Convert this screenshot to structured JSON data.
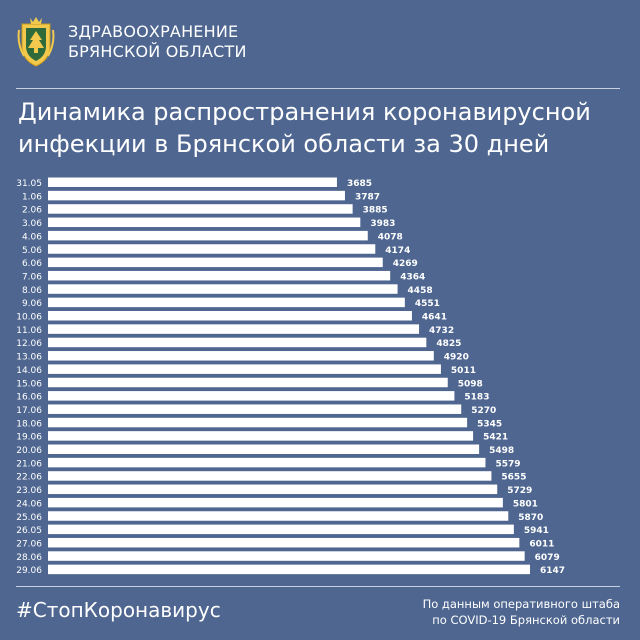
{
  "header": {
    "org_line1": "ЗДРАВООХРАНЕНИЕ",
    "org_line2": "БРЯНСКОЙ ОБЛАСТИ",
    "emblem_icon": "coat-of-arms-icon"
  },
  "title": {
    "line1": "Динамика распространения коронавирусной",
    "line2": "инфекции в Брянской области за 30 дней"
  },
  "footer": {
    "hashtag": "#СтопКоронавирус",
    "source_line1": "По данным оперативного штаба",
    "source_line2": "по COVID-19 Брянской области"
  },
  "colors": {
    "background": "#4e6690",
    "bar": "#ffffff",
    "text": "#ffffff"
  },
  "chart_data": {
    "type": "bar",
    "orientation": "horizontal",
    "title": "Динамика распространения коронавирусной инфекции в Брянской области за 30 дней",
    "categories": [
      "31.05",
      "1.06",
      "2.06",
      "3.06",
      "4.06",
      "5.06",
      "6.06",
      "7.06",
      "8.06",
      "9.06",
      "10.06",
      "11.06",
      "12.06",
      "13.06",
      "14.06",
      "15.06",
      "16.06",
      "17.06",
      "18.06",
      "19.06",
      "20.06",
      "21.06",
      "22.06",
      "23.06",
      "24.06",
      "25.06",
      "26.05",
      "27.06",
      "28.06",
      "29.06"
    ],
    "values": [
      3685,
      3787,
      3885,
      3983,
      4078,
      4174,
      4269,
      4364,
      4458,
      4551,
      4641,
      4732,
      4825,
      4920,
      5011,
      5098,
      5183,
      5270,
      5345,
      5421,
      5498,
      5579,
      5655,
      5729,
      5801,
      5870,
      5941,
      6011,
      6079,
      6147
    ],
    "data_labels": true,
    "grid": false
  }
}
